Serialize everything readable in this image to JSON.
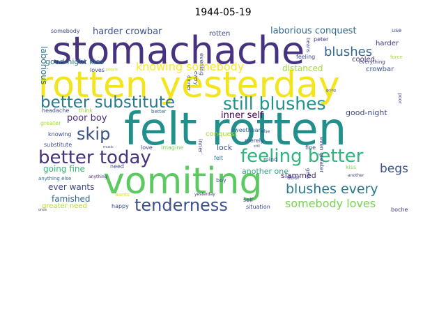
{
  "title": "1944-05-19",
  "words": [
    {
      "text": "felt rotten",
      "color": "#218f8c"
    },
    {
      "text": "rotten yesterday",
      "color": "#f2e51d"
    },
    {
      "text": "stomachache",
      "color": "#46327e"
    },
    {
      "text": "vomiting",
      "color": "#5ec962"
    },
    {
      "text": "better today",
      "color": "#46327e"
    },
    {
      "text": "feeling better",
      "color": "#2fb47c"
    },
    {
      "text": "better substitute",
      "color": "#2a788e"
    },
    {
      "text": "still blushes",
      "color": "#21918c"
    },
    {
      "text": "tenderness",
      "color": "#3b528b"
    },
    {
      "text": "skip",
      "color": "#3b528b"
    },
    {
      "text": "blushes every",
      "color": "#2a788e"
    },
    {
      "text": "somebody loves",
      "color": "#7ad151"
    },
    {
      "text": "knowing somebody",
      "color": "#fde725"
    },
    {
      "text": "blushes",
      "color": "#31688e"
    },
    {
      "text": "begs",
      "color": "#3b528b"
    },
    {
      "text": "laborious conquest",
      "color": "#31688e"
    },
    {
      "text": "harder crowbar",
      "color": "#3b528b"
    },
    {
      "text": "inner self",
      "color": "#440154"
    },
    {
      "text": "poor boy",
      "color": "#472c7a"
    },
    {
      "text": "going fine",
      "color": "#35b779"
    },
    {
      "text": "ever wants",
      "color": "#3e4989"
    },
    {
      "text": "famished",
      "color": "#31688e"
    },
    {
      "text": "distanced",
      "color": "#a0da39"
    },
    {
      "text": "good-night kiss",
      "color": "#2a788e"
    },
    {
      "text": "greater need",
      "color": "#b5de2b"
    },
    {
      "text": "slammed",
      "color": "#482878"
    },
    {
      "text": "another one",
      "color": "#21a685"
    },
    {
      "text": "good-night",
      "color": "#3e4989"
    },
    {
      "text": "rotten",
      "color": "#3e4989"
    },
    {
      "text": "cooled",
      "color": "#472d7b"
    },
    {
      "text": "crowbar",
      "color": "#3b528b"
    },
    {
      "text": "harder",
      "color": "#46327e"
    },
    {
      "text": "laborious",
      "color": "#2c728e"
    },
    {
      "text": "lock",
      "color": "#3b528b"
    },
    {
      "text": "conquest",
      "color": "#a5db36"
    },
    {
      "text": "somebody",
      "color": "#3e4989"
    },
    {
      "text": "use",
      "color": "#3e4989"
    },
    {
      "text": "felt",
      "color": "#2a788e"
    },
    {
      "text": "peter",
      "color": "#46327e"
    },
    {
      "text": "sweetheart",
      "color": "#31688e"
    },
    {
      "text": "merely",
      "color": "#3e4989"
    },
    {
      "text": "mind",
      "color": "#3e4989"
    },
    {
      "text": "boy",
      "color": "#3b528b"
    },
    {
      "text": "kiss",
      "color": "#86d549"
    },
    {
      "text": "need",
      "color": "#3e4989"
    },
    {
      "text": "love",
      "color": "#3e4989"
    },
    {
      "text": "fine",
      "color": "#3e4989"
    },
    {
      "text": "imagine",
      "color": "#7ad151"
    },
    {
      "text": "better",
      "color": "#31688e"
    },
    {
      "text": "think",
      "color": "#95d840"
    },
    {
      "text": "headache",
      "color": "#3e4989"
    },
    {
      "text": "greater",
      "color": "#a8db34"
    },
    {
      "text": "knowing",
      "color": "#3e4989"
    },
    {
      "text": "substitute",
      "color": "#3e4989"
    },
    {
      "text": "anything else",
      "color": "#31688e"
    },
    {
      "text": "anything",
      "color": "#482878"
    },
    {
      "text": "happy",
      "color": "#3e4989"
    },
    {
      "text": "wants",
      "color": "#d8e219"
    },
    {
      "text": "loves",
      "color": "#3e4989"
    },
    {
      "text": "situation",
      "color": "#3e4989"
    },
    {
      "text": "self",
      "color": "#3e4989"
    },
    {
      "text": "yesterday",
      "color": "#472c7a"
    },
    {
      "text": "door",
      "color": "#3e4989"
    },
    {
      "text": "gets",
      "color": "#3e4989"
    },
    {
      "text": "another",
      "color": "#3e4989"
    },
    {
      "text": "boche",
      "color": "#46327e"
    },
    {
      "text": "everything",
      "color": "#3e4989"
    },
    {
      "text": "force",
      "color": "#9fda3a"
    },
    {
      "text": "feeling",
      "color": "#3e4989"
    },
    {
      "text": "poor",
      "color": "#3e4989"
    },
    {
      "text": "even greater",
      "color": "#3e4989"
    },
    {
      "text": "evening",
      "color": "#3e4989"
    },
    {
      "text": "every",
      "color": "#3e4989"
    },
    {
      "text": "dinner",
      "color": "#3e4989"
    },
    {
      "text": "inner",
      "color": "#3e4989"
    },
    {
      "text": "people",
      "color": "#b8de29"
    },
    {
      "text": "going",
      "color": "#3e4989"
    },
    {
      "text": "else",
      "color": "#3e4989"
    },
    {
      "text": "beans",
      "color": "#3e4989"
    },
    {
      "text": "still",
      "color": "#3e4989"
    },
    {
      "text": "once",
      "color": "#3e4989"
    },
    {
      "text": "music",
      "color": "#3e4989"
    }
  ]
}
